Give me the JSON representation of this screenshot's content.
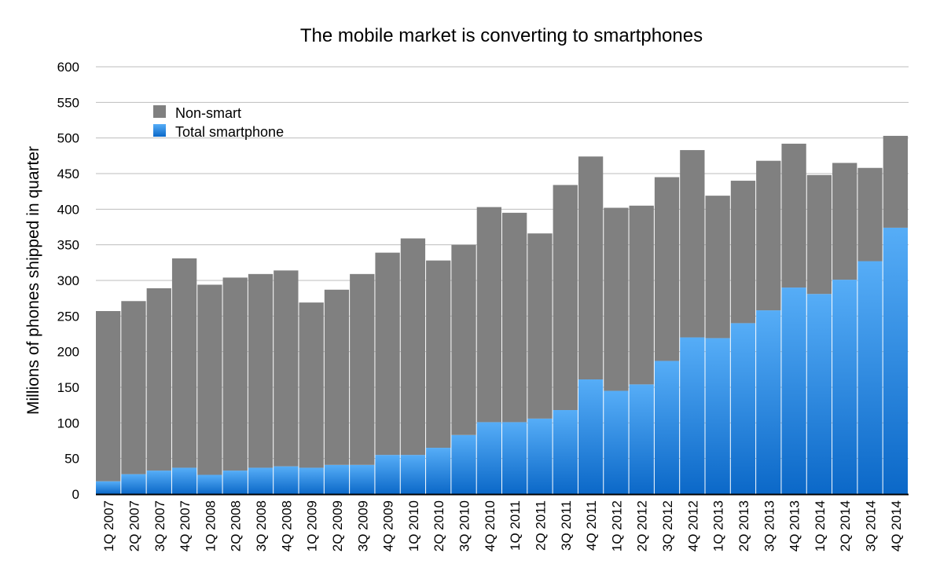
{
  "chart_data": {
    "type": "bar",
    "stacked": true,
    "title": "The mobile market is converting to smartphones",
    "xlabel": "",
    "ylabel": "Millions of phones shipped in quarter",
    "ylim": [
      0,
      600
    ],
    "yticks": [
      0,
      50,
      100,
      150,
      200,
      250,
      300,
      350,
      400,
      450,
      500,
      550,
      600
    ],
    "grid": true,
    "legend_position": "top-left",
    "categories": [
      "1Q 2007",
      "2Q 2007",
      "3Q 2007",
      "4Q 2007",
      "1Q 2008",
      "2Q 2008",
      "3Q 2008",
      "4Q 2008",
      "1Q 2009",
      "2Q 2009",
      "3Q 2009",
      "4Q 2009",
      "1Q 2010",
      "2Q 2010",
      "3Q 2010",
      "4Q 2010",
      "1Q 2011",
      "2Q 2011",
      "3Q 2011",
      "4Q 2011",
      "1Q 2012",
      "2Q 2012",
      "3Q 2012",
      "4Q 2012",
      "1Q 2013",
      "2Q 2013",
      "3Q 2013",
      "4Q 2013",
      "1Q 2014",
      "2Q 2014",
      "3Q 2014",
      "4Q 2014"
    ],
    "series": [
      {
        "name": "Total smartphone",
        "color": "#2a8ae8",
        "values": [
          18,
          28,
          33,
          37,
          27,
          33,
          37,
          39,
          37,
          41,
          41,
          55,
          55,
          65,
          83,
          101,
          101,
          106,
          118,
          161,
          145,
          154,
          187,
          220,
          219,
          240,
          258,
          290,
          281,
          301,
          327,
          374
        ]
      },
      {
        "name": "Non-smart",
        "color": "#808080",
        "values": [
          239,
          243,
          256,
          294,
          267,
          271,
          272,
          275,
          232,
          246,
          268,
          284,
          304,
          263,
          267,
          302,
          294,
          260,
          316,
          313,
          257,
          251,
          258,
          263,
          200,
          200,
          210,
          202,
          167,
          164,
          131,
          129
        ]
      }
    ]
  }
}
